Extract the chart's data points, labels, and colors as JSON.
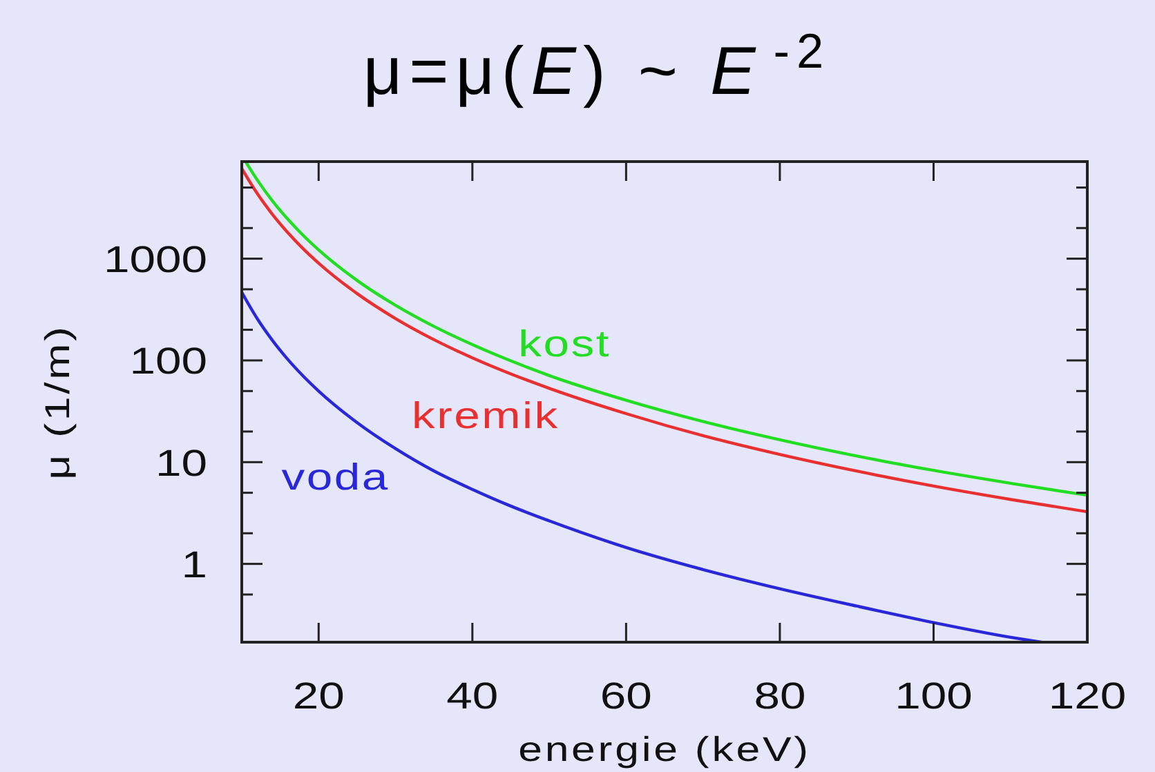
{
  "chart_data": {
    "type": "line",
    "title": "μ=μ(E) ~ E$^{-2}$",
    "xlabel": "energie (keV)",
    "ylabel": "μ (1/m)",
    "log": "y",
    "xlim": [
      10,
      120
    ],
    "xticks": [
      20,
      40,
      60,
      80,
      100,
      120
    ],
    "ylim": [
      0.17,
      9000
    ],
    "yticks": [
      {
        "value": 0.5,
        "label": null
      },
      1,
      {
        "value": 2,
        "label": null
      },
      {
        "value": 5,
        "label": null
      },
      10,
      {
        "value": 20,
        "label": null
      },
      {
        "value": 50,
        "label": null
      },
      100,
      {
        "value": 200,
        "label": null
      },
      {
        "value": 500,
        "label": null
      },
      1000,
      {
        "value": 2000,
        "label": null
      },
      {
        "value": 5000,
        "label": null
      }
    ],
    "x": [
      10,
      12,
      14,
      16,
      18,
      20,
      25,
      30,
      35,
      40,
      45,
      50,
      60,
      70,
      80,
      90,
      100,
      110,
      120
    ],
    "line_style": "solid",
    "series": [
      {
        "name": "kost",
        "color": "#22dd22",
        "x": [
          10.5,
          12,
          14,
          16,
          18,
          20,
          25,
          30,
          35,
          40,
          45,
          50,
          60,
          70,
          80,
          90,
          100,
          110,
          120
        ],
        "values": [
          9000,
          5960,
          3690,
          2440,
          1690,
          1220,
          611,
          348,
          216,
          143,
          99,
          71,
          40.6,
          25.1,
          16.6,
          11.5,
          8.3,
          6.2,
          4.73
        ]
      },
      {
        "name": "kremik",
        "color": "#e83030",
        "values": [
          7690,
          4380,
          2720,
          1800,
          1250,
          904,
          454,
          258,
          160,
          106,
          73.7,
          53.2,
          30,
          18.2,
          11.9,
          8.17,
          5.82,
          4.3,
          3.25
        ]
      },
      {
        "name": "voda",
        "color": "#2828d8",
        "x": [
          10,
          12,
          14,
          16,
          18,
          20,
          25,
          30,
          35,
          40,
          45,
          50,
          60,
          70,
          80,
          90,
          100,
          110,
          114
        ],
        "values": [
          467,
          258,
          157,
          102,
          70,
          50,
          24.5,
          13.6,
          8.2,
          5.4,
          3.7,
          2.65,
          1.45,
          0.88,
          0.57,
          0.385,
          0.265,
          0.19,
          0.17
        ]
      }
    ]
  }
}
